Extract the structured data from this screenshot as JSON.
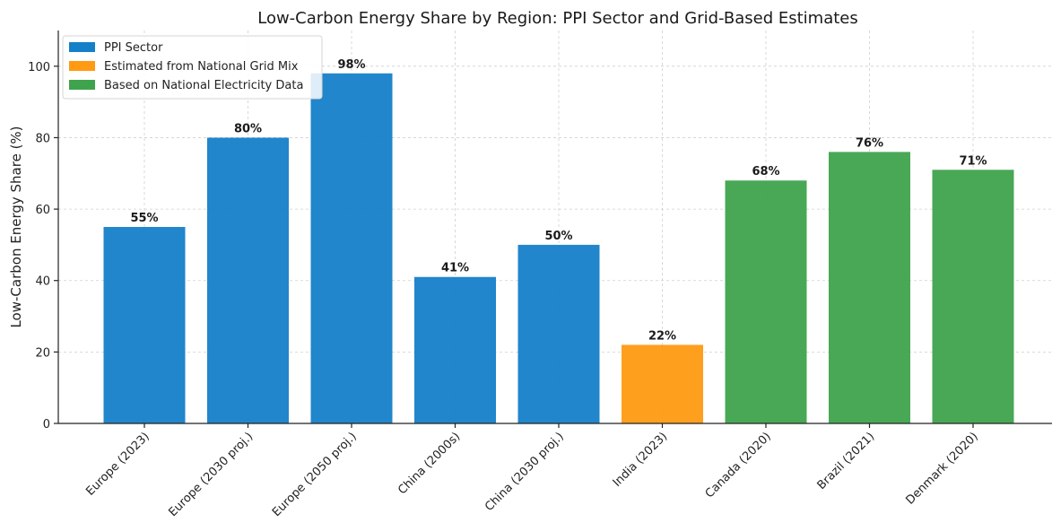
{
  "chart_data": {
    "type": "bar",
    "title": "Low-Carbon Energy Share by Region: PPI Sector and Grid-Based Estimates",
    "xlabel": "",
    "ylabel": "Low-Carbon Energy Share (%)",
    "ylim": [
      0,
      110
    ],
    "yticks": [
      "0",
      "20",
      "40",
      "60",
      "80",
      "100"
    ],
    "grid": true,
    "legend_position": "top-left",
    "categories": [
      "Europe (2023)",
      "Europe (2030 proj.)",
      "Europe (2050 proj.)",
      "China (2000s)",
      "China (2030 proj.)",
      "India (2023)",
      "Canada (2020)",
      "Brazil (2021)",
      "Denmark (2020)"
    ],
    "values": [
      55,
      80,
      98,
      41,
      50,
      22,
      68,
      76,
      71
    ],
    "value_labels": [
      "55%",
      "80%",
      "98%",
      "41%",
      "50%",
      "22%",
      "68%",
      "76%",
      "71%"
    ],
    "bar_groups": [
      0,
      0,
      0,
      0,
      0,
      1,
      2,
      2,
      2
    ],
    "groups": [
      {
        "name": "PPI Sector",
        "color": "#1580c8"
      },
      {
        "name": "Estimated from National Grid Mix",
        "color": "#ff9a12"
      },
      {
        "name": "Based on National Electricity Data",
        "color": "#3fa34d"
      }
    ]
  }
}
